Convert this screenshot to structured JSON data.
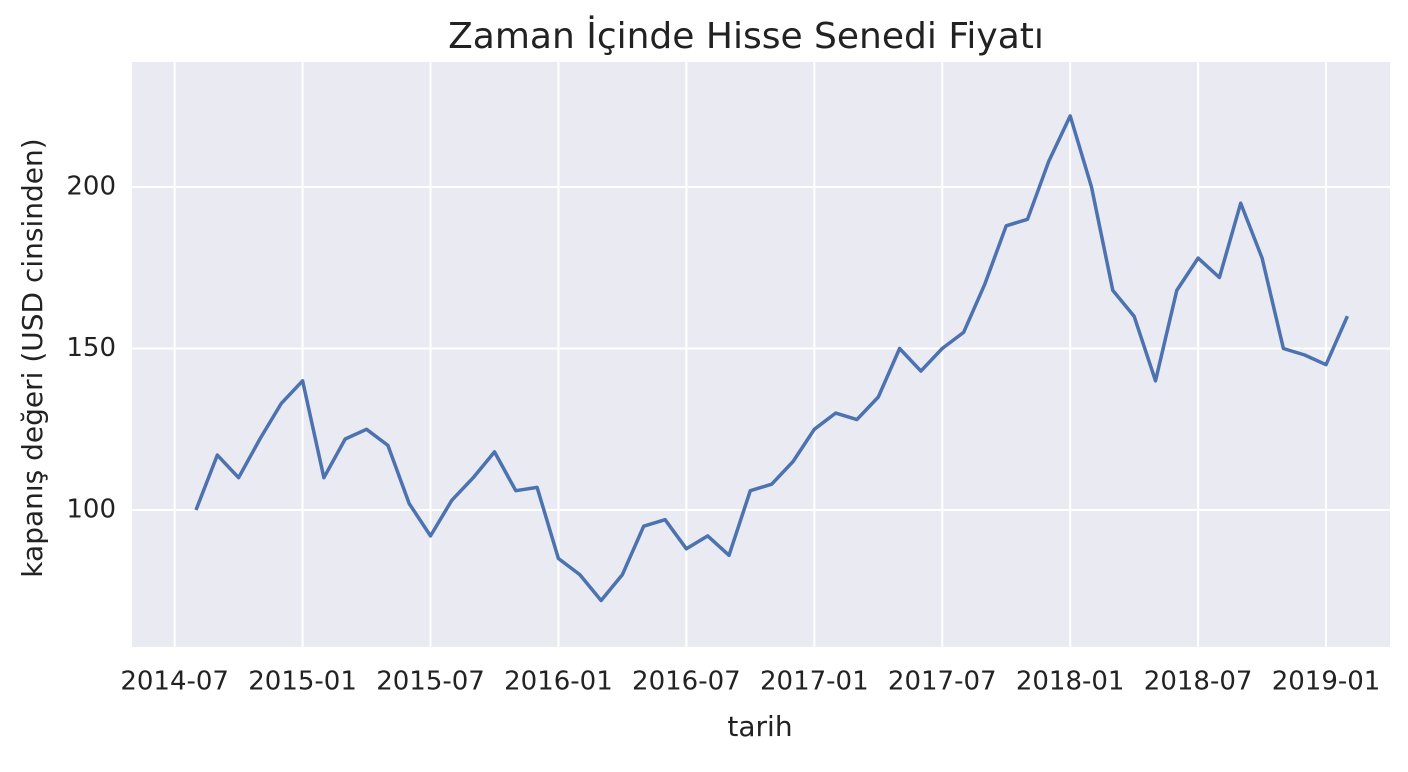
{
  "chart_data": {
    "type": "line",
    "title": "Zaman İçinde Hisse Senedi Fiyatı",
    "x_label": "tarih",
    "y_label": "kapanış değeri (USD cinsinden)",
    "x": [
      "2014-08",
      "2014-09",
      "2014-10",
      "2014-11",
      "2014-12",
      "2015-01",
      "2015-02",
      "2015-03",
      "2015-04",
      "2015-05",
      "2015-06",
      "2015-07",
      "2015-08",
      "2015-09",
      "2015-10",
      "2015-11",
      "2015-12",
      "2016-01",
      "2016-02",
      "2016-03",
      "2016-04",
      "2016-05",
      "2016-06",
      "2016-07",
      "2016-08",
      "2016-09",
      "2016-10",
      "2016-11",
      "2016-12",
      "2017-01",
      "2017-02",
      "2017-03",
      "2017-04",
      "2017-05",
      "2017-06",
      "2017-07",
      "2017-08",
      "2017-09",
      "2017-10",
      "2017-11",
      "2017-12",
      "2018-01",
      "2018-02",
      "2018-03",
      "2018-04",
      "2018-05",
      "2018-06",
      "2018-07",
      "2018-08",
      "2018-09",
      "2018-10",
      "2018-11",
      "2018-12",
      "2019-01",
      "2019-02"
    ],
    "values": [
      100,
      117,
      110,
      122,
      133,
      140,
      110,
      122,
      125,
      120,
      102,
      92,
      103,
      110,
      118,
      106,
      107,
      85,
      80,
      72,
      80,
      95,
      97,
      88,
      92,
      86,
      106,
      108,
      115,
      125,
      130,
      128,
      135,
      150,
      143,
      150,
      155,
      170,
      188,
      190,
      208,
      222,
      200,
      168,
      160,
      140,
      168,
      178,
      172,
      195,
      178,
      150,
      148,
      145,
      160
    ],
    "color": "#4c72b0",
    "xlim": [
      "2014-05",
      "2019-04"
    ],
    "xticks": [
      "2014-07",
      "2015-01",
      "2015-07",
      "2016-01",
      "2016-07",
      "2017-01",
      "2017-07",
      "2018-01",
      "2018-07",
      "2019-01"
    ],
    "ylim": [
      57.6,
      238.7
    ],
    "yticks": [
      100,
      150,
      200
    ],
    "grid": true
  }
}
